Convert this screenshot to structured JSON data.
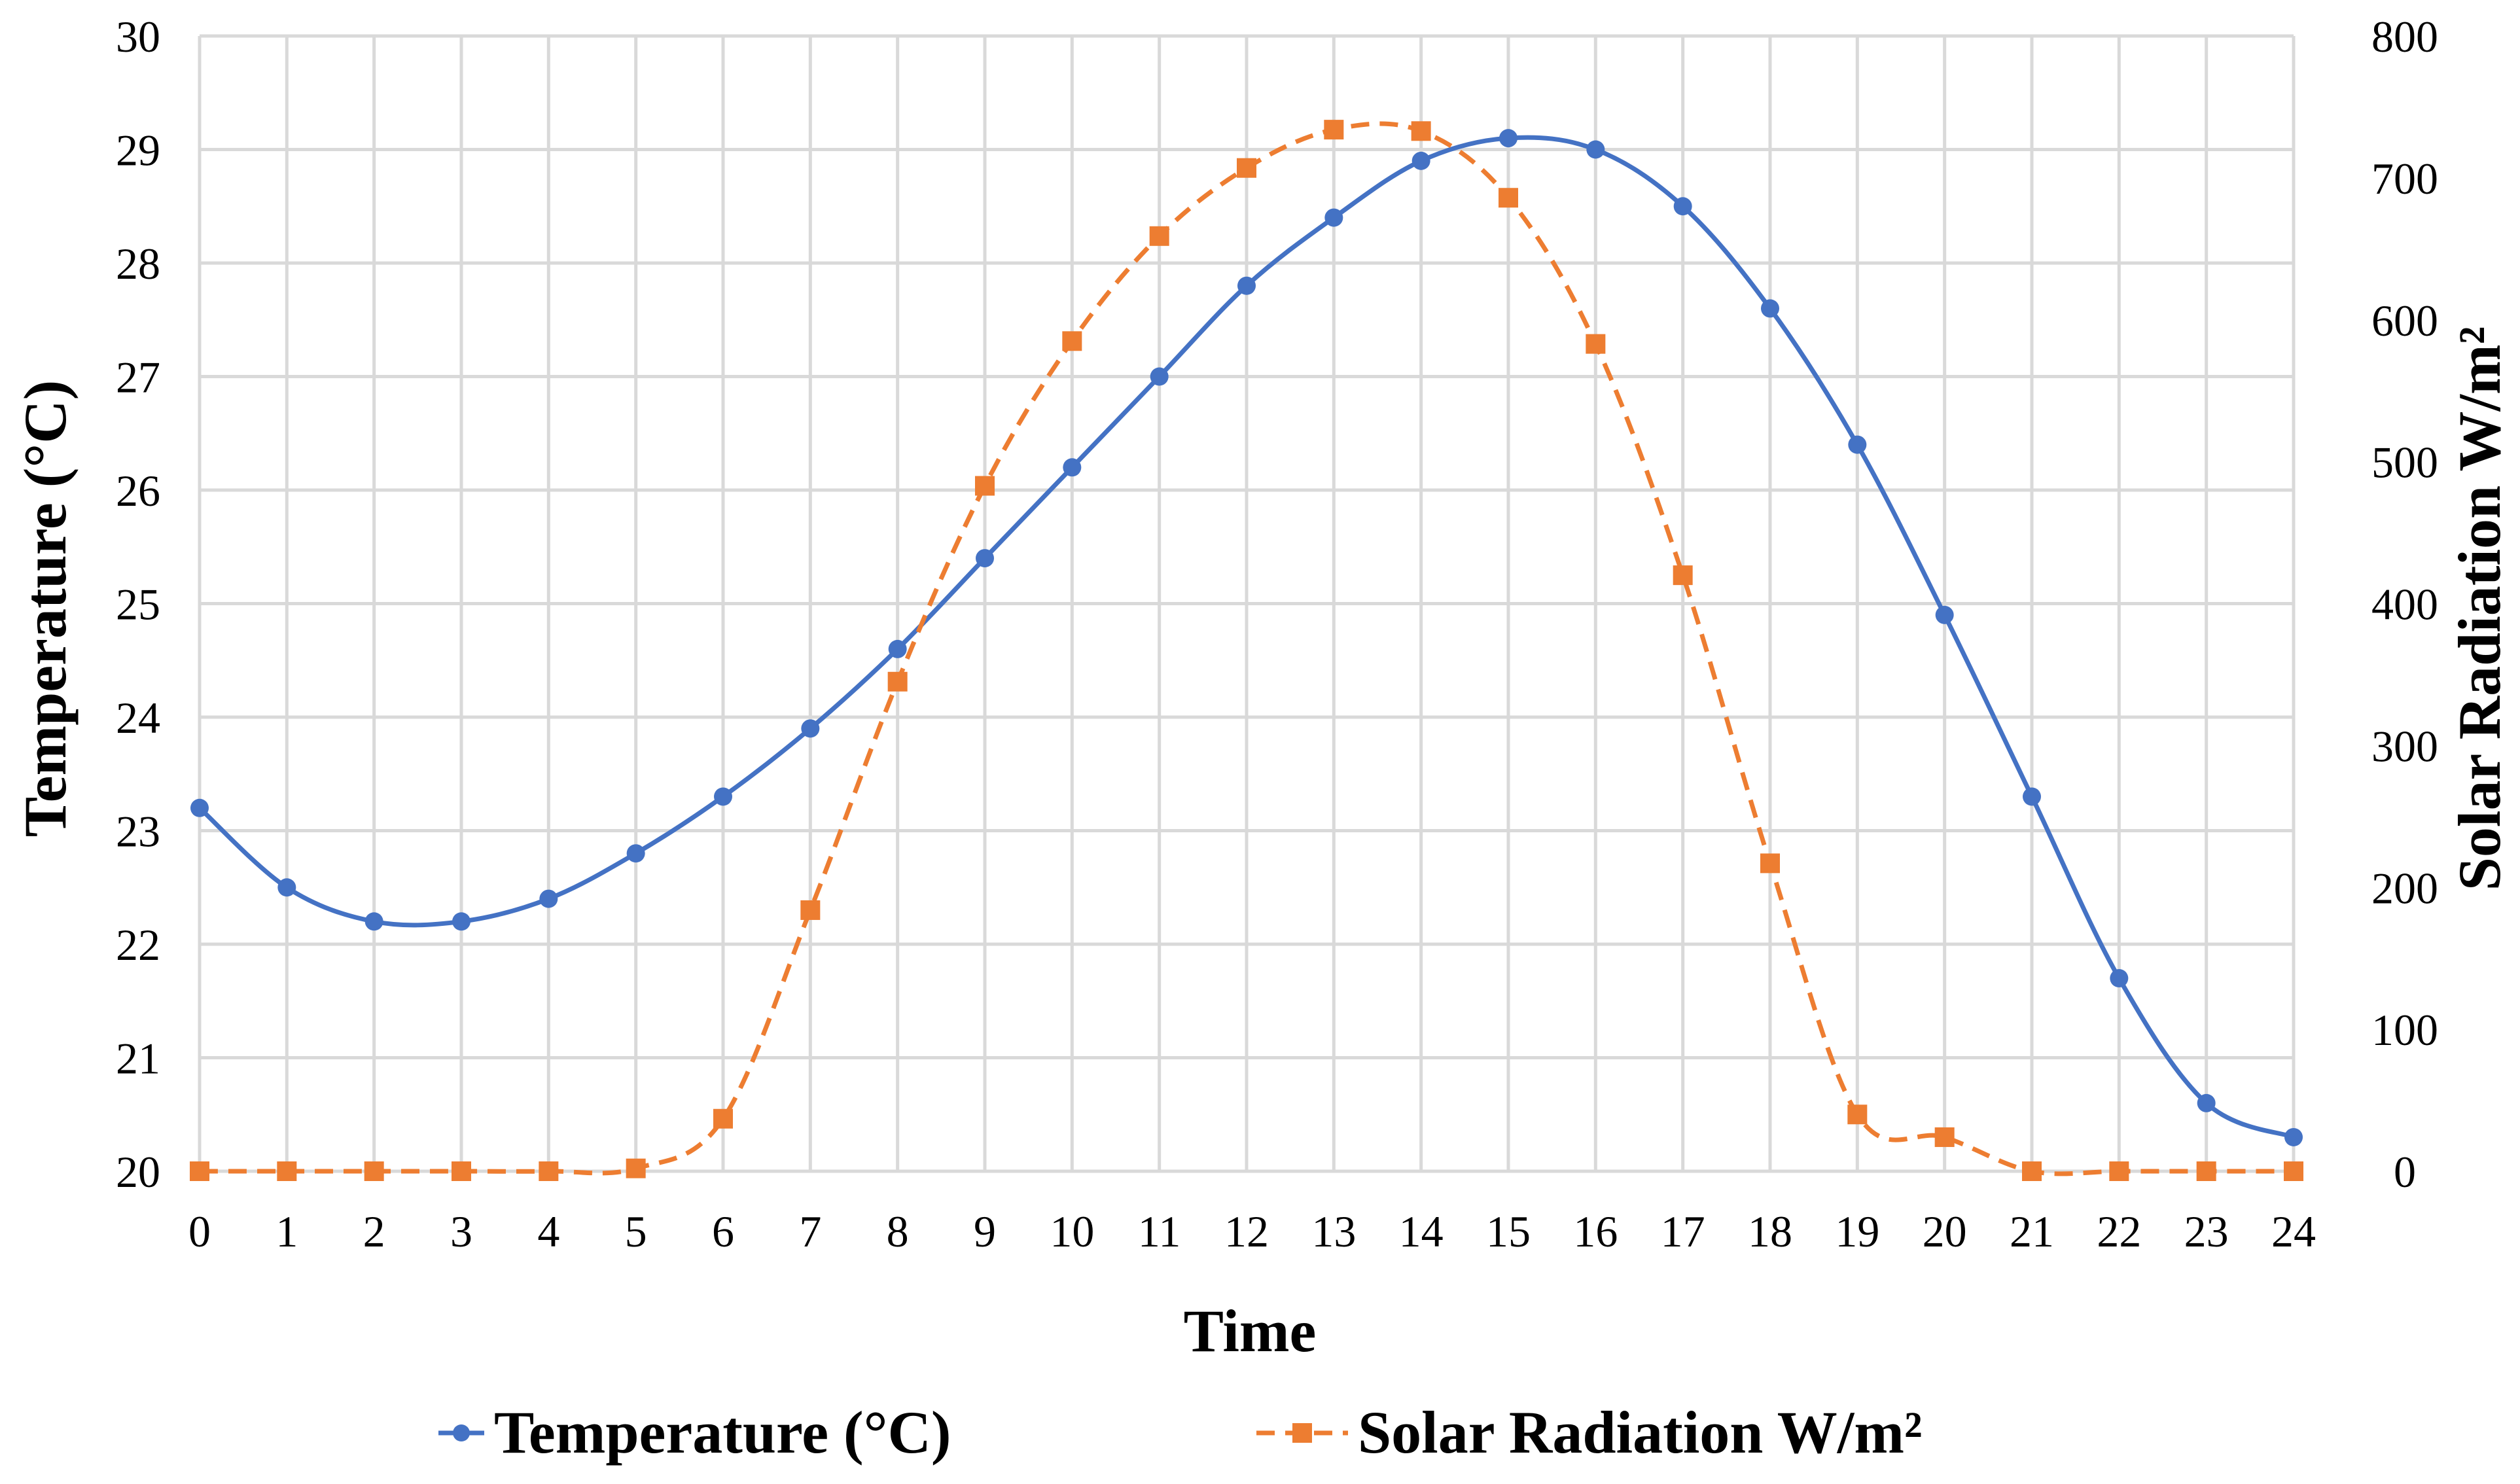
{
  "chart_data": {
    "type": "line",
    "title": "",
    "xlabel": "Time",
    "ylabel": "Temperature (°C)",
    "y2label": "Solar Radiation W/m²",
    "x": [
      0,
      1,
      2,
      3,
      4,
      5,
      6,
      7,
      8,
      9,
      10,
      11,
      12,
      13,
      14,
      15,
      16,
      17,
      18,
      19,
      20,
      21,
      22,
      23,
      24
    ],
    "xlim": [
      0,
      24
    ],
    "ylim": [
      20,
      30
    ],
    "y2lim": [
      0,
      800
    ],
    "grid": true,
    "legend_position": "bottom",
    "x_ticks": [
      "0",
      "1",
      "2",
      "3",
      "4",
      "5",
      "6",
      "7",
      "8",
      "9",
      "10",
      "11",
      "12",
      "13",
      "14",
      "15",
      "16",
      "17",
      "18",
      "19",
      "20",
      "21",
      "22",
      "23",
      "24"
    ],
    "y_ticks": [
      "20",
      "21",
      "22",
      "23",
      "24",
      "25",
      "26",
      "27",
      "28",
      "29",
      "30"
    ],
    "y2_ticks": [
      "0",
      "100",
      "200",
      "300",
      "400",
      "500",
      "600",
      "700",
      "800"
    ],
    "series": [
      {
        "name": "Temperature (°C)",
        "axis": "left",
        "color": "#4472c4",
        "style": "solid",
        "marker": "circle",
        "values": [
          23.2,
          22.5,
          22.2,
          22.2,
          22.4,
          22.8,
          23.3,
          23.9,
          24.6,
          25.4,
          26.2,
          27.0,
          27.8,
          28.4,
          28.9,
          29.1,
          29.0,
          28.5,
          27.6,
          26.4,
          24.9,
          23.3,
          21.7,
          20.6,
          20.3
        ]
      },
      {
        "name": "Solar Radiation W/m²",
        "axis": "right",
        "color": "#ed7d31",
        "style": "dashed",
        "marker": "square",
        "values": [
          0,
          0,
          0,
          0,
          0,
          2,
          37,
          184,
          345,
          483,
          585,
          659,
          707,
          734,
          733,
          686,
          583,
          420,
          217,
          40,
          24,
          0,
          0,
          0,
          0
        ]
      }
    ]
  }
}
